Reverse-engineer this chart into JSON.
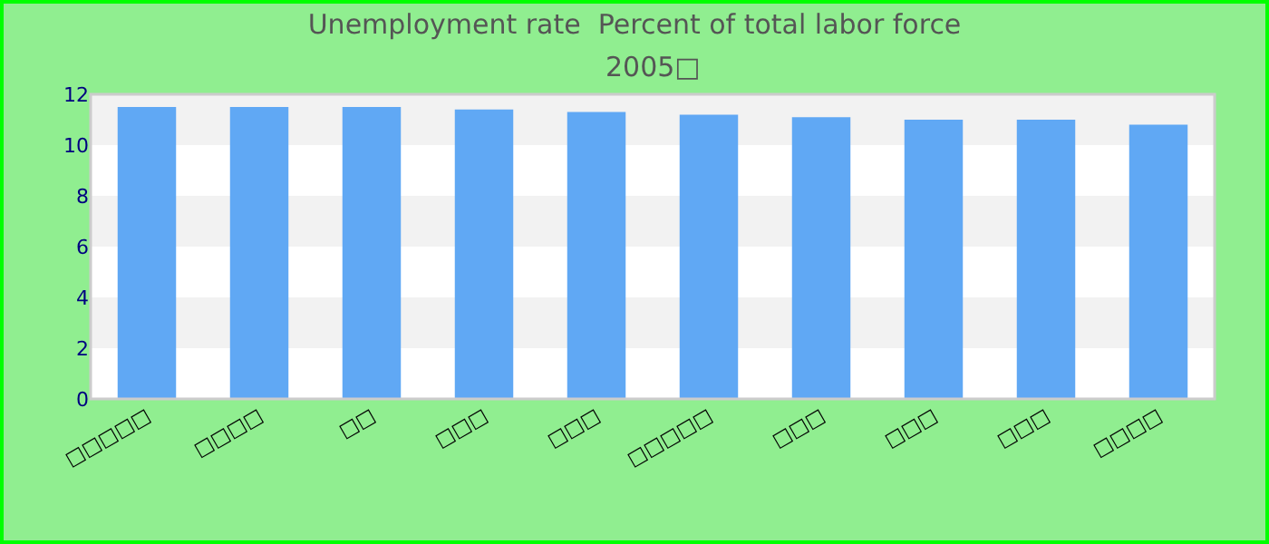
{
  "chart_data": {
    "type": "bar",
    "title": "Unemployment rate  Percent of total labor force",
    "subtitle": "2005□",
    "categories": [
      "□□□□□",
      "□□□□",
      "□□",
      "□□□",
      "□□□",
      "□□□□□",
      "□□□",
      "□□□",
      "□□□",
      "□□□□"
    ],
    "values": [
      11.5,
      11.5,
      11.5,
      11.4,
      11.3,
      11.2,
      11.1,
      11.0,
      11.0,
      10.8
    ],
    "color": "#60a8f4",
    "ylim": [
      0,
      12
    ],
    "yticks": [
      0,
      2,
      4,
      6,
      8,
      10,
      12
    ],
    "bands": [
      {
        "axis": "y",
        "from": 2,
        "to": 4,
        "color": "#f2f2f2"
      },
      {
        "axis": "y",
        "from": 6,
        "to": 8,
        "color": "#f2f2f2"
      },
      {
        "axis": "y",
        "from": 10,
        "to": 12,
        "color": "#f2f2f2"
      }
    ]
  }
}
